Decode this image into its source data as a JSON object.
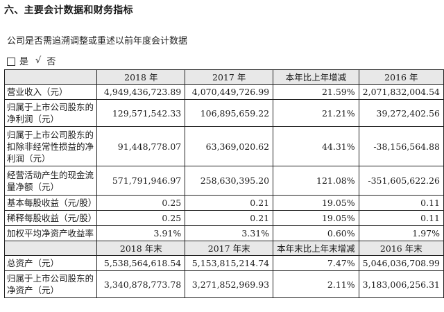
{
  "section": {
    "title": "六、主要会计数据和财务指标"
  },
  "question": {
    "text": "公司是否需追溯调整或重述以前年度会计数据",
    "option_yes": "是",
    "check_mark": "√",
    "option_no": "否"
  },
  "table": {
    "header1": [
      "",
      "2018 年",
      "2017 年",
      "本年比上年增减",
      "2016 年"
    ],
    "rows1": [
      {
        "label": "营业收入（元）",
        "v2018": "4,949,436,723.89",
        "v2017": "4,070,449,726.99",
        "change": "21.59%",
        "v2016": "2,071,832,004.54"
      },
      {
        "label": "归属于上市公司股东的净利润（元）",
        "v2018": "129,571,542.33",
        "v2017": "106,895,659.22",
        "change": "21.21%",
        "v2016": "39,272,402.56"
      },
      {
        "label": "归属于上市公司股东的扣除非经常性损益的净利润（元）",
        "v2018": "91,448,778.07",
        "v2017": "63,369,020.62",
        "change": "44.31%",
        "v2016": "-38,156,564.88"
      },
      {
        "label": "经营活动产生的现金流量净额（元）",
        "v2018": "571,791,946.97",
        "v2017": "258,630,395.20",
        "change": "121.08%",
        "v2016": "-351,605,622.26"
      },
      {
        "label": "基本每股收益（元/股）",
        "v2018": "0.25",
        "v2017": "0.21",
        "change": "19.05%",
        "v2016": "0.11"
      },
      {
        "label": "稀释每股收益（元/股）",
        "v2018": "0.25",
        "v2017": "0.21",
        "change": "19.05%",
        "v2016": "0.11"
      },
      {
        "label": "加权平均净资产收益率",
        "v2018": "3.91%",
        "v2017": "3.31%",
        "change": "0.60%",
        "v2016": "1.97%"
      }
    ],
    "header2": [
      "",
      "2018 年末",
      "2017 年末",
      "本年末比上年末增减",
      "2016 年末"
    ],
    "rows2": [
      {
        "label": "总资产（元）",
        "v2018": "5,538,564,618.54",
        "v2017": "5,153,815,214.74",
        "change": "7.47%",
        "v2016": "5,046,036,708.99"
      },
      {
        "label": "归属于上市公司股东的净资产（元）",
        "v2018": "3,340,878,773.78",
        "v2017": "3,271,852,969.93",
        "change": "2.11%",
        "v2016": "3,183,006,256.31"
      }
    ]
  }
}
